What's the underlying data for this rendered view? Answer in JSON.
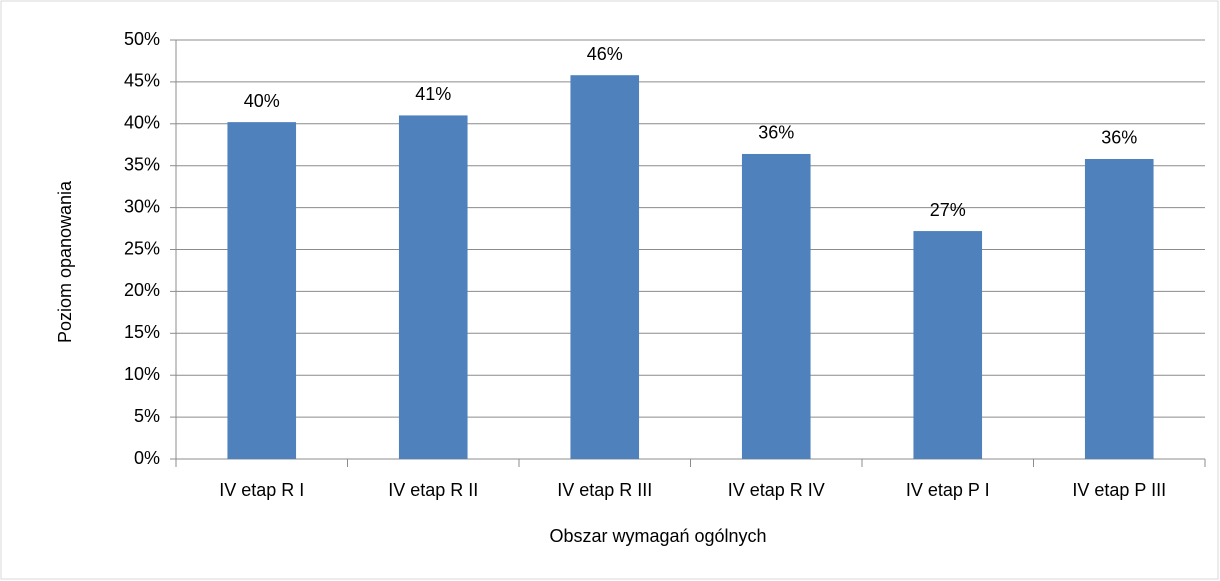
{
  "chart_data": {
    "type": "bar",
    "x_label": "Obszar wymagań ogólnych",
    "y_label": "Poziom opanowania",
    "categories": [
      "IV etap R I",
      "IV etap R II",
      "IV etap R III",
      "IV etap R IV",
      "IV etap P I",
      "IV etap P III"
    ],
    "values": [
      40.2,
      41.0,
      45.8,
      36.4,
      27.2,
      35.8
    ],
    "value_labels": [
      "40%",
      "41%",
      "46%",
      "36%",
      "27%",
      "36%"
    ],
    "color": "#4f81bd",
    "ylim": [
      0,
      50
    ],
    "yticks": [
      {
        "value": 0,
        "label": "0%"
      },
      {
        "value": 5,
        "label": "5%"
      },
      {
        "value": 10,
        "label": "10%"
      },
      {
        "value": 15,
        "label": "15%"
      },
      {
        "value": 20,
        "label": "20%"
      },
      {
        "value": 25,
        "label": "25%"
      },
      {
        "value": 30,
        "label": "30%"
      },
      {
        "value": 35,
        "label": "35%"
      },
      {
        "value": 40,
        "label": "40%"
      },
      {
        "value": 45,
        "label": "45%"
      },
      {
        "value": 50,
        "label": "50%"
      }
    ],
    "grid": true
  }
}
